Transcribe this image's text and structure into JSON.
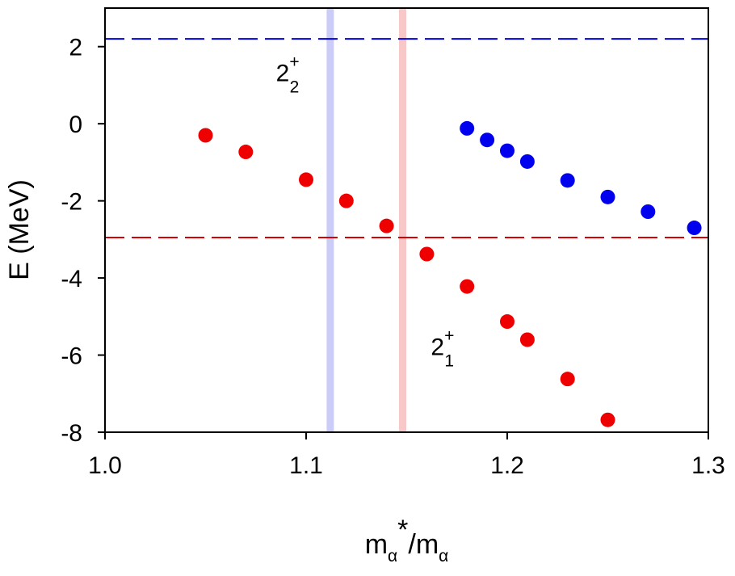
{
  "chart_data": {
    "type": "scatter",
    "title": "",
    "xlabel": {
      "base": "m",
      "sub1": "α",
      "sup": "*",
      "slash": "/m",
      "sub2": "α"
    },
    "ylabel": "E (MeV)",
    "xlim": [
      1.0,
      1.3
    ],
    "ylim": [
      -8,
      3
    ],
    "xticks": [
      1.0,
      1.1,
      1.2,
      1.3
    ],
    "xtick_labels": [
      "1.0",
      "1.1",
      "1.2",
      "1.3"
    ],
    "yticks": [
      2,
      0,
      -2,
      -4,
      -6,
      -8
    ],
    "ytick_labels": [
      "2",
      "0",
      "-2",
      "-4",
      "-6",
      "-8"
    ],
    "grid": false,
    "series": [
      {
        "name": "2+1",
        "color": "#ee0000",
        "x": [
          1.05,
          1.07,
          1.1,
          1.12,
          1.14,
          1.16,
          1.18,
          1.2,
          1.21,
          1.23,
          1.25
        ],
        "y": [
          -0.3,
          -0.73,
          -1.45,
          -2.0,
          -2.65,
          -3.38,
          -4.22,
          -5.13,
          -5.6,
          -6.62,
          -7.68
        ]
      },
      {
        "name": "2+2",
        "color": "#0000ee",
        "x": [
          1.18,
          1.19,
          1.2,
          1.21,
          1.23,
          1.25,
          1.27,
          1.293
        ],
        "y": [
          -0.12,
          -0.42,
          -0.7,
          -0.98,
          -1.47,
          -1.9,
          -2.28,
          -2.7
        ]
      }
    ],
    "hlines": [
      {
        "name": "2+2-threshold",
        "y": 2.2,
        "color": "#0000dd",
        "style": "dashed"
      },
      {
        "name": "2+1-threshold",
        "y": -2.95,
        "color": "#dd0000",
        "style": "dashed"
      }
    ],
    "vbands": [
      {
        "name": "blue-band",
        "x": 1.112,
        "color": "#ccccf8"
      },
      {
        "name": "red-band",
        "x": 1.148,
        "color": "#f8c8c8"
      }
    ],
    "annotations": [
      {
        "name": "label-2plus2",
        "base": "2",
        "sup": "+",
        "sub": "2",
        "x": 1.085,
        "y": 1.1
      },
      {
        "name": "label-2plus1",
        "base": "2",
        "sup": "+",
        "sub": "1",
        "x": 1.162,
        "y": -6.0
      }
    ]
  }
}
